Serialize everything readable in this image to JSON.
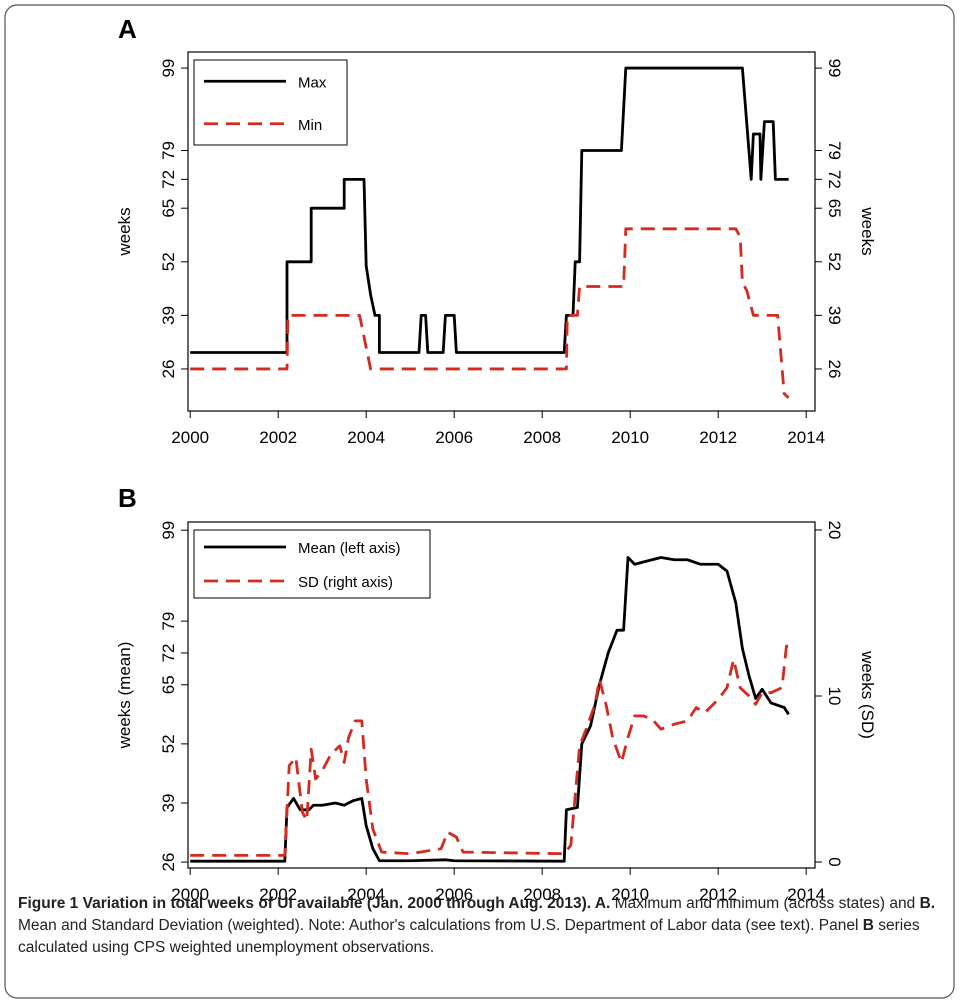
{
  "chart_data": [
    {
      "type": "line",
      "label": "A",
      "xlim": [
        1999.95,
        2014.2
      ],
      "xticks": [
        2000,
        2002,
        2004,
        2006,
        2008,
        2010,
        2012,
        2014
      ],
      "ylim": [
        15.8,
        102.9
      ],
      "yticks": [
        26,
        39,
        52,
        65,
        72,
        79,
        99
      ],
      "y_label": "weeks",
      "y2lim": [
        15.8,
        102.9
      ],
      "y2ticks": [
        26,
        39,
        52,
        65,
        72,
        79,
        99
      ],
      "y2_label": "weeks",
      "legend": "top-left",
      "series": [
        {
          "name": "Max",
          "color": "#000000",
          "line_style": "solid",
          "x": [
            2000,
            2002.2,
            2002.2,
            2002.75,
            2002.75,
            2003.5,
            2003.5,
            2003.95,
            2004.0,
            2004.1,
            2004.2,
            2004.3,
            2004.3,
            2005.2,
            2005.25,
            2005.35,
            2005.4,
            2005.75,
            2005.8,
            2006.0,
            2006.05,
            2008.5,
            2008.55,
            2008.7,
            2008.75,
            2008.85,
            2008.9,
            2009.8,
            2009.9,
            2012.55,
            2012.75,
            2012.8,
            2012.95,
            2012.97,
            2013.05,
            2013.25,
            2013.3,
            2013.6
          ],
          "values": [
            30,
            30,
            52,
            52,
            65,
            65,
            72,
            72,
            51,
            44,
            39,
            39,
            30,
            30,
            39,
            39,
            30,
            30,
            39,
            39,
            30,
            30,
            39,
            39,
            52,
            52,
            79,
            79,
            99,
            99,
            72,
            83,
            83,
            72,
            86,
            86,
            72,
            72
          ]
        },
        {
          "name": "Min",
          "color": "#d42a1f",
          "line_style": "dashed",
          "x": [
            2000,
            2002.2,
            2002.22,
            2003.85,
            2004.1,
            2008.55,
            2008.57,
            2008.8,
            2008.85,
            2009.85,
            2009.9,
            2012.4,
            2012.5,
            2012.55,
            2012.65,
            2012.8,
            2013.35,
            2013.5,
            2013.6
          ],
          "values": [
            26,
            26,
            39,
            39,
            26,
            26,
            39,
            39,
            46,
            46,
            60,
            60,
            58,
            47,
            45,
            39,
            39,
            20,
            19
          ]
        }
      ]
    },
    {
      "type": "line",
      "label": "B",
      "xlim": [
        1999.95,
        2014.2
      ],
      "xticks": [
        2000,
        2002,
        2004,
        2006,
        2008,
        2010,
        2012,
        2014
      ],
      "ylim": [
        24.7,
        100.8
      ],
      "yticks": [
        26,
        39,
        52,
        65,
        72,
        79,
        99
      ],
      "y_label": "weeks (mean)",
      "y2lim": [
        -0.36,
        20.48
      ],
      "y2ticks": [
        0,
        10,
        20
      ],
      "y2_label": "weeks (SD)",
      "legend": "top-left",
      "series": [
        {
          "name": "Mean (left axis)",
          "color": "#000000",
          "line_style": "solid",
          "x": [
            2000,
            2002.15,
            2002.2,
            2002.35,
            2002.5,
            2002.7,
            2002.8,
            2003.0,
            2003.3,
            2003.5,
            2003.7,
            2003.9,
            2004.0,
            2004.15,
            2004.3,
            2005.0,
            2005.8,
            2006.0,
            2008.5,
            2008.55,
            2008.8,
            2008.9,
            2009.1,
            2009.3,
            2009.5,
            2009.7,
            2009.85,
            2009.95,
            2010.1,
            2010.3,
            2010.5,
            2010.7,
            2011.0,
            2011.3,
            2011.6,
            2011.8,
            2012.0,
            2012.2,
            2012.4,
            2012.55,
            2012.7,
            2012.85,
            2013.0,
            2013.2,
            2013.5,
            2013.6
          ],
          "values": [
            26.2,
            26.2,
            38,
            40,
            37.5,
            37.5,
            38.5,
            38.5,
            39,
            38.5,
            39.5,
            40,
            34,
            29,
            26.3,
            26.3,
            26.5,
            26.3,
            26.2,
            37.5,
            38,
            52,
            56,
            65,
            72,
            77,
            77,
            93,
            91.5,
            92,
            92.5,
            93,
            92.5,
            92.5,
            91.5,
            91.5,
            91.5,
            90,
            83,
            73,
            67,
            62,
            64,
            61,
            60,
            58.5
          ]
        },
        {
          "name": "SD (right axis)",
          "color": "#d42a1f",
          "line_style": "dashed",
          "axis": "y2",
          "x": [
            2000,
            2002.15,
            2002.25,
            2002.4,
            2002.55,
            2002.65,
            2002.75,
            2002.85,
            2003.0,
            2003.2,
            2003.4,
            2003.5,
            2003.6,
            2003.75,
            2003.9,
            2004.0,
            2004.15,
            2004.35,
            2005.0,
            2005.7,
            2005.85,
            2006.05,
            2006.2,
            2008.5,
            2008.65,
            2008.85,
            2009.0,
            2009.2,
            2009.3,
            2009.45,
            2009.6,
            2009.8,
            2009.95,
            2010.1,
            2010.3,
            2010.5,
            2010.7,
            2011.0,
            2011.3,
            2011.5,
            2011.7,
            2012.0,
            2012.2,
            2012.35,
            2012.5,
            2012.7,
            2012.85,
            2013.0,
            2013.2,
            2013.45,
            2013.55,
            2013.6
          ],
          "values": [
            0.4,
            0.4,
            5.8,
            6.3,
            3,
            2.5,
            6.8,
            5,
            5.5,
            6.5,
            7,
            6,
            7.5,
            8.5,
            8.5,
            5,
            2,
            0.6,
            0.5,
            0.8,
            1.8,
            1.5,
            0.6,
            0.5,
            1,
            7,
            8,
            9.5,
            11,
            9.5,
            7.5,
            6,
            7.5,
            8.8,
            8.8,
            8.6,
            8,
            8.3,
            8.5,
            9.3,
            9,
            9.8,
            10.5,
            12.2,
            10.5,
            10,
            9.5,
            10.2,
            10.2,
            10.5,
            13,
            13
          ]
        }
      ]
    }
  ],
  "caption": [
    {
      "text": "Figure 1 Variation in total weeks of UI available (Jan. 2000 through Aug. 2013). A.",
      "bold": true
    },
    {
      "text": " Maximum and minimum (across states) and ",
      "bold": false
    },
    {
      "text": "B.",
      "bold": true
    },
    {
      "text": " Mean and Standard Deviation (weighted). Note: Author's calculations from U.S. Department of Labor data (see text). Panel ",
      "bold": false
    },
    {
      "text": "B",
      "bold": true
    },
    {
      "text": " series calculated using CPS weighted unemployment observations.",
      "bold": false
    }
  ]
}
